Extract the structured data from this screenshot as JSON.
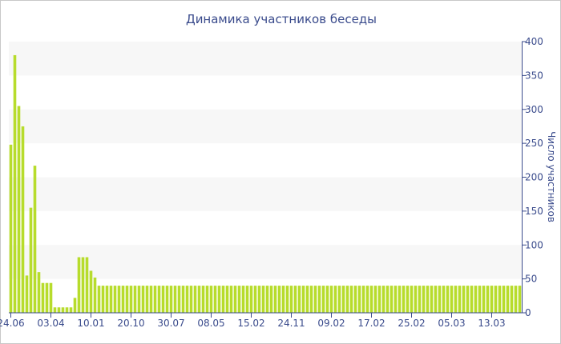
{
  "chart_data": {
    "type": "bar",
    "title": "Динамика участников беседы",
    "xlabel": "",
    "ylabel": "Число участников",
    "ylim": [
      0,
      400
    ],
    "y_ticks": [
      0,
      50,
      100,
      150,
      200,
      250,
      300,
      350,
      400
    ],
    "y_axis_side": "right",
    "grid": "horizontal bands",
    "legend": "none",
    "x_tick_labels": [
      {
        "label": "24.06",
        "index": 0
      },
      {
        "label": "03.04",
        "index": 10
      },
      {
        "label": "10.01",
        "index": 20
      },
      {
        "label": "20.10",
        "index": 30
      },
      {
        "label": "30.07",
        "index": 40
      },
      {
        "label": "08.05",
        "index": 50
      },
      {
        "label": "15.02",
        "index": 60
      },
      {
        "label": "24.11",
        "index": 70
      },
      {
        "label": "09.02",
        "index": 80
      },
      {
        "label": "17.02",
        "index": 90
      },
      {
        "label": "25.02",
        "index": 100
      },
      {
        "label": "05.03",
        "index": 110
      },
      {
        "label": "13.03",
        "index": 120
      }
    ],
    "series": [
      {
        "values": [
          248,
          380,
          305,
          275,
          55,
          155,
          217,
          60,
          44,
          44,
          44,
          8,
          8,
          8,
          8,
          8,
          22,
          82,
          82,
          82,
          62,
          52,
          40,
          40,
          40,
          40,
          40,
          40,
          40,
          40,
          40,
          40,
          40,
          40,
          40,
          40,
          40,
          40,
          40,
          40,
          40,
          40,
          40,
          40,
          40,
          40,
          40,
          40,
          40,
          40,
          40,
          40,
          40,
          40,
          40,
          40,
          40,
          40,
          40,
          40,
          40,
          40,
          40,
          40,
          40,
          40,
          40,
          40,
          40,
          40,
          40,
          40,
          40,
          40,
          40,
          40,
          40,
          40,
          40,
          40,
          40,
          40,
          40,
          40,
          40,
          40,
          40,
          40,
          40,
          40,
          40,
          40,
          40,
          40,
          40,
          40,
          40,
          40,
          40,
          40,
          40,
          40,
          40,
          40,
          40,
          40,
          40,
          40,
          40,
          40,
          40,
          40,
          40,
          40,
          40,
          40,
          40,
          40,
          40,
          40,
          40,
          40,
          40,
          40,
          40,
          40,
          40,
          40
        ]
      }
    ],
    "colors": {
      "bar": "#b7dc2c",
      "band": "#f7f7f7",
      "axis": "#3a4b8c",
      "text": "#3a4b8c"
    }
  }
}
